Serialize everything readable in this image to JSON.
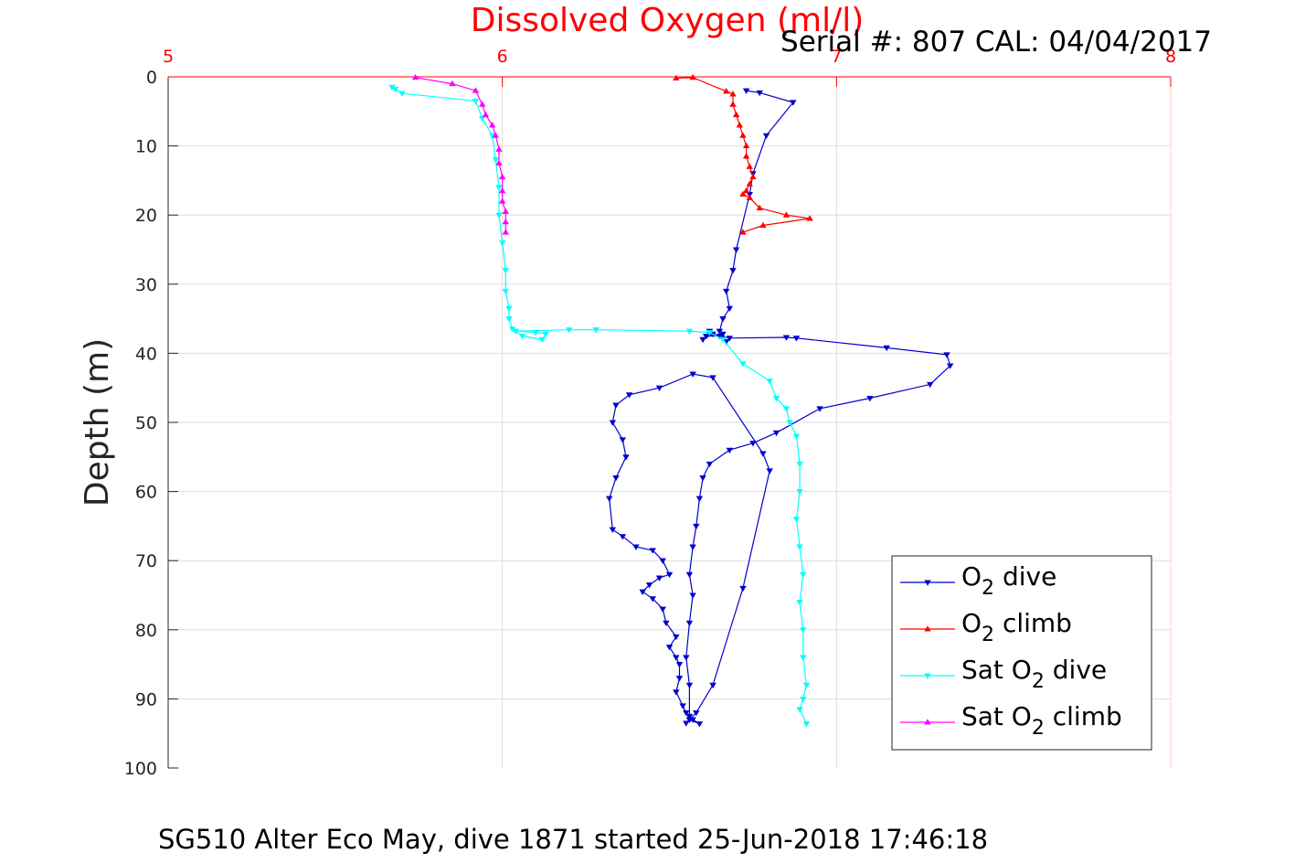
{
  "chart_data": {
    "type": "line",
    "title": "Dissolved Oxygen (ml/l)",
    "subtitle": "Serial #: 807  CAL: 04/04/2017",
    "footer": "SG510 Alter Eco May, dive 1871 started 25-Jun-2018 17:46:18",
    "xlabel": "",
    "ylabel": "Depth (m)",
    "xlim": [
      5,
      8
    ],
    "ylim": [
      0,
      100
    ],
    "y_reversed": true,
    "x_axis_position": "top",
    "xticks": [
      5,
      6,
      7,
      8
    ],
    "yticks": [
      0,
      10,
      20,
      30,
      40,
      50,
      60,
      70,
      80,
      90,
      100
    ],
    "xtick_color": "#ff0000",
    "title_color": "#ff0000",
    "grid": true,
    "legend_position": "bottom-right",
    "series": [
      {
        "name": "O2 dive",
        "label_main": "O",
        "label_sub": "2",
        "label_rest": " dive",
        "color": "#0000cc",
        "marker": "triangle-down",
        "x": [
          6.73,
          6.77,
          6.87,
          6.79,
          6.75,
          6.74,
          6.7,
          6.69,
          6.67,
          6.68,
          6.66,
          6.65,
          6.66,
          6.67,
          6.62,
          6.61,
          6.63,
          6.6,
          6.61,
          6.65,
          6.68,
          6.85,
          6.88,
          7.15,
          7.33,
          7.34,
          7.28,
          7.1,
          6.95,
          6.82,
          6.75,
          6.68,
          6.62,
          6.6,
          6.59,
          6.58,
          6.57,
          6.56,
          6.57,
          6.56,
          6.55,
          6.56,
          6.56,
          6.57,
          6.59,
          6.56,
          6.58,
          6.63,
          6.72,
          6.8,
          6.78,
          6.63,
          6.57,
          6.47,
          6.38,
          6.34,
          6.33,
          6.36,
          6.37,
          6.34,
          6.32,
          6.33,
          6.36,
          6.4,
          6.45,
          6.48,
          6.5,
          6.47,
          6.44,
          6.42,
          6.45,
          6.48,
          6.49,
          6.52,
          6.5,
          6.52,
          6.53,
          6.53,
          6.52,
          6.54,
          6.55,
          6.56,
          6.55
        ],
        "y": [
          2,
          2.3,
          3.7,
          8.5,
          14,
          17,
          25,
          28,
          31,
          33.5,
          35,
          36.8,
          37.2,
          38.3,
          36.8,
          37.5,
          37.2,
          38,
          37.5,
          37.5,
          37.8,
          37.7,
          37.8,
          39.2,
          40.2,
          41.8,
          44.5,
          46.5,
          48,
          51.5,
          53,
          54,
          56,
          58,
          61,
          65,
          68,
          72,
          75,
          79,
          84,
          88,
          92.5,
          93,
          93.6,
          93,
          92,
          88,
          74,
          57,
          54.5,
          43.5,
          43,
          45,
          46,
          47.5,
          50,
          52.5,
          55,
          58,
          61,
          65.5,
          66.5,
          68,
          68.5,
          70,
          72,
          72.5,
          73.5,
          74.5,
          75.5,
          77,
          79,
          81,
          82.5,
          84,
          85,
          87,
          89,
          91,
          92,
          93,
          93.5
        ]
      },
      {
        "name": "O2 climb",
        "label_main": "O",
        "label_sub": "2",
        "label_rest": " climb",
        "color": "#ff0000",
        "marker": "triangle-up",
        "x": [
          6.52,
          6.57,
          6.67,
          6.69,
          6.69,
          6.7,
          6.71,
          6.72,
          6.73,
          6.73,
          6.74,
          6.75,
          6.74,
          6.73,
          6.72,
          6.74,
          6.77,
          6.85,
          6.92,
          6.78,
          6.72
        ],
        "y": [
          0.2,
          0.1,
          2.1,
          2.5,
          4.0,
          5.5,
          7.0,
          8.5,
          10.0,
          11.5,
          13.0,
          14.5,
          15.5,
          16.5,
          17.0,
          17.5,
          19.0,
          20.0,
          20.5,
          21.5,
          22.5
        ]
      },
      {
        "name": "Sat O2 dive",
        "label_main": "Sat O",
        "label_sub": "2",
        "label_rest": " dive",
        "color": "#00ffff",
        "marker": "triangle-down",
        "x": [
          5.67,
          5.68,
          5.7,
          5.92,
          5.94,
          5.97,
          5.98,
          5.99,
          5.99,
          6.0,
          6.01,
          6.01,
          6.02,
          6.02,
          6.03,
          6.06,
          6.12,
          6.13,
          6.1,
          6.04,
          6.2,
          6.28,
          6.56,
          6.62,
          6.66,
          6.72,
          6.8,
          6.82,
          6.85,
          6.86,
          6.88,
          6.89,
          6.89,
          6.88,
          6.89,
          6.9,
          6.89,
          6.9,
          6.9,
          6.91,
          6.9,
          6.89,
          6.91
        ],
        "y": [
          1.5,
          1.8,
          2.4,
          3.5,
          6.0,
          8.5,
          12.0,
          16.0,
          20.0,
          24.0,
          28.0,
          31.0,
          33.5,
          35.0,
          36.5,
          37.5,
          38.0,
          37.2,
          37.0,
          36.8,
          36.6,
          36.6,
          36.8,
          37.0,
          38.0,
          41.5,
          44.0,
          46.5,
          48.0,
          50.0,
          52.0,
          56.0,
          60.0,
          64.0,
          68.0,
          72.0,
          76.0,
          80.0,
          84.0,
          88.0,
          90.0,
          91.5,
          93.6
        ]
      },
      {
        "name": "Sat O2 climb",
        "label_main": "Sat O",
        "label_sub": "2",
        "label_rest": " climb",
        "color": "#ff00ff",
        "marker": "triangle-up",
        "x": [
          5.74,
          5.85,
          5.92,
          5.94,
          5.95,
          5.97,
          5.98,
          5.99,
          5.99,
          6.0,
          6.0,
          6.0,
          6.01,
          6.01,
          6.01
        ],
        "y": [
          0.1,
          1.0,
          2.0,
          4.0,
          5.5,
          7.0,
          8.5,
          10.5,
          12.5,
          14.5,
          16.5,
          18.0,
          19.5,
          21.0,
          22.5
        ]
      }
    ]
  }
}
